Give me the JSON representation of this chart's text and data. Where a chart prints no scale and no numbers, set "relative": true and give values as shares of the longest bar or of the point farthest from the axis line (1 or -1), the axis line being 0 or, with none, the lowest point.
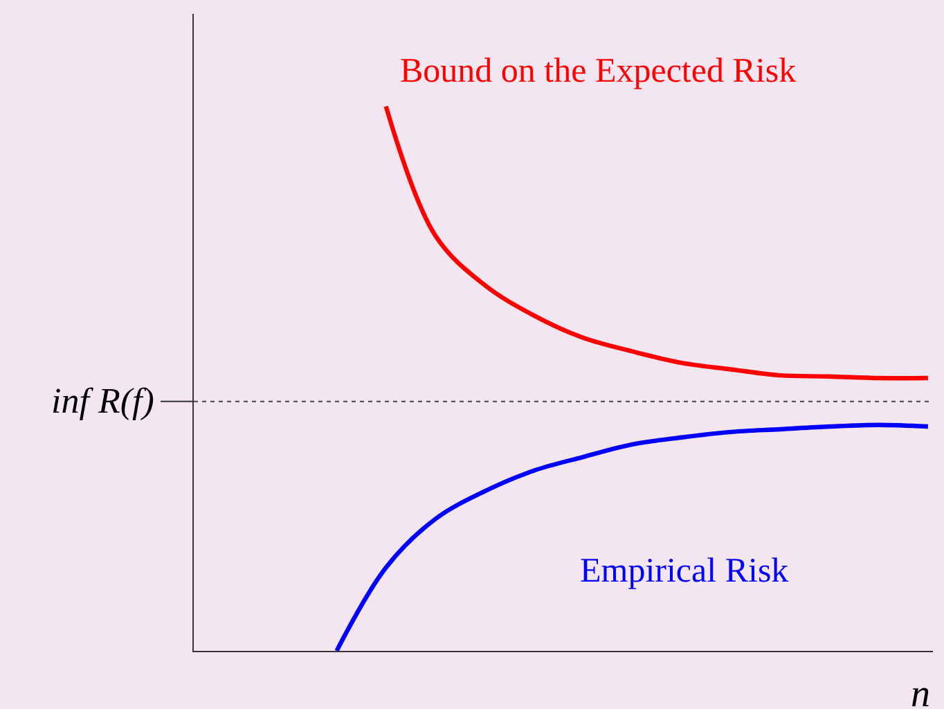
{
  "chart_data": {
    "type": "line",
    "relative": true,
    "xlabel": "n",
    "categories": [
      null,
      null,
      null,
      null,
      null,
      null,
      null,
      null,
      null,
      null,
      null,
      null,
      null
    ],
    "series": [
      {
        "name": "Bound on the Expected Risk",
        "color": "#ff0000",
        "values": [
          null,
          1.0,
          0.763,
          0.672,
          0.616,
          0.575,
          0.55,
          0.529,
          0.517,
          0.506,
          0.504,
          0.501,
          0.501
        ]
      },
      {
        "name": "Empirical Risk",
        "color": "#0000ff",
        "values": [
          0,
          0.153,
          0.242,
          0.293,
          0.331,
          0.356,
          0.379,
          0.392,
          0.402,
          0.407,
          0.412,
          0.415,
          0.412
        ]
      }
    ],
    "ref_lines": [
      {
        "axis": "y",
        "value": 0.458,
        "label": "inf R(f)",
        "line_style": "dotted",
        "color": "#555555"
      }
    ],
    "marker": "none",
    "line_style": "solid",
    "grid": false,
    "legend": false
  }
}
